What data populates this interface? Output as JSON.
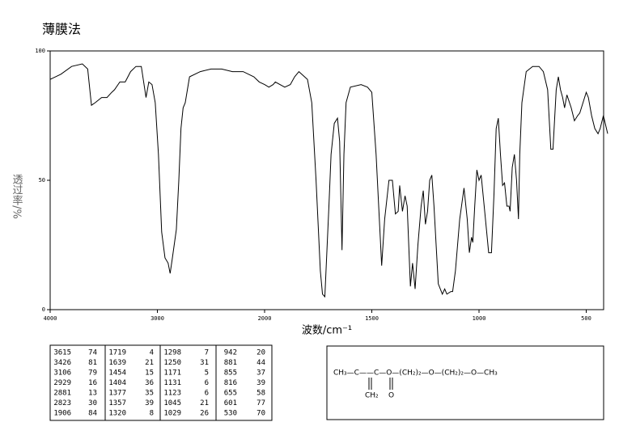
{
  "chart_data": {
    "type": "line",
    "title": "薄膜法",
    "xlabel": "波数/cm⁻¹",
    "ylabel": "透过率/%",
    "xlim": [
      4000,
      400
    ],
    "xticks": [
      4000,
      3000,
      2000,
      1500,
      1000,
      500
    ],
    "ylim": [
      0,
      100
    ],
    "yticks": [
      0,
      50,
      100
    ],
    "color": "#000000",
    "x": [
      4000,
      3900,
      3800,
      3700,
      3650,
      3615,
      3580,
      3520,
      3470,
      3426,
      3400,
      3350,
      3300,
      3250,
      3200,
      3150,
      3106,
      3080,
      3050,
      3020,
      2990,
      2960,
      2929,
      2900,
      2881,
      2860,
      2823,
      2800,
      2780,
      2760,
      2740,
      2700,
      2600,
      2500,
      2400,
      2300,
      2200,
      2100,
      2050,
      2000,
      1980,
      1960,
      1950,
      1906,
      1880,
      1860,
      1840,
      1800,
      1780,
      1760,
      1740,
      1730,
      1719,
      1700,
      1690,
      1675,
      1660,
      1650,
      1639,
      1630,
      1620,
      1600,
      1550,
      1520,
      1500,
      1480,
      1454,
      1440,
      1420,
      1404,
      1390,
      1377,
      1370,
      1357,
      1345,
      1335,
      1320,
      1310,
      1298,
      1285,
      1270,
      1260,
      1250,
      1240,
      1230,
      1220,
      1210,
      1200,
      1190,
      1171,
      1160,
      1150,
      1131,
      1123,
      1110,
      1090,
      1070,
      1055,
      1045,
      1035,
      1029,
      1020,
      1010,
      1000,
      990,
      970,
      955,
      942,
      930,
      920,
      910,
      900,
      890,
      881,
      870,
      860,
      855,
      845,
      835,
      825,
      816,
      810,
      800,
      780,
      750,
      720,
      700,
      680,
      665,
      655,
      640,
      630,
      620,
      610,
      601,
      590,
      570,
      555,
      540,
      530,
      515,
      500,
      490,
      475,
      460,
      445,
      435,
      420,
      400
    ],
    "values": [
      89,
      91,
      94,
      95,
      93,
      79,
      80,
      82,
      82,
      84,
      85,
      88,
      88,
      92,
      94,
      94,
      82,
      88,
      87,
      80,
      60,
      30,
      20,
      18,
      14,
      20,
      31,
      50,
      70,
      78,
      80,
      90,
      92,
      93,
      93,
      92,
      92,
      90,
      88,
      87,
      86,
      87,
      88,
      86,
      87,
      90,
      92,
      89,
      80,
      50,
      15,
      6,
      5,
      40,
      60,
      72,
      74,
      65,
      23,
      60,
      80,
      86,
      87,
      86,
      84,
      60,
      17,
      35,
      50,
      50,
      37,
      38,
      48,
      38,
      44,
      40,
      9,
      18,
      8,
      25,
      40,
      46,
      33,
      38,
      50,
      52,
      40,
      25,
      10,
      6,
      8,
      6,
      7,
      7,
      15,
      35,
      47,
      35,
      22,
      28,
      26,
      40,
      54,
      50,
      52,
      35,
      22,
      22,
      45,
      70,
      74,
      60,
      48,
      49,
      40,
      40,
      38,
      55,
      60,
      50,
      35,
      60,
      80,
      92,
      94,
      94,
      92,
      85,
      62,
      62,
      85,
      90,
      85,
      82,
      78,
      83,
      78,
      73,
      75,
      76,
      80,
      84,
      82,
      75,
      70,
      68,
      70,
      75,
      68
    ]
  },
  "peak_table": {
    "rows": [
      [
        "3615",
        "74",
        "1719",
        "4",
        "1298",
        "7",
        "942",
        "20"
      ],
      [
        "3426",
        "81",
        "1639",
        "21",
        "1250",
        "31",
        "881",
        "44"
      ],
      [
        "3106",
        "79",
        "1454",
        "15",
        "1171",
        "5",
        "855",
        "37"
      ],
      [
        "2929",
        "16",
        "1404",
        "36",
        "1131",
        "6",
        "816",
        "39"
      ],
      [
        "2881",
        "13",
        "1377",
        "35",
        "1123",
        "6",
        "655",
        "58"
      ],
      [
        "2823",
        "30",
        "1357",
        "39",
        "1045",
        "21",
        "601",
        "77"
      ],
      [
        "1906",
        "84",
        "1320",
        "8",
        "1029",
        "26",
        "530",
        "70"
      ]
    ]
  },
  "structure": {
    "main": "CH₃—C——C—O—(CH₂)₂—O—(CH₂)₂—O—CH₃",
    "branch_left": "CH₂",
    "branch_right": "O"
  }
}
